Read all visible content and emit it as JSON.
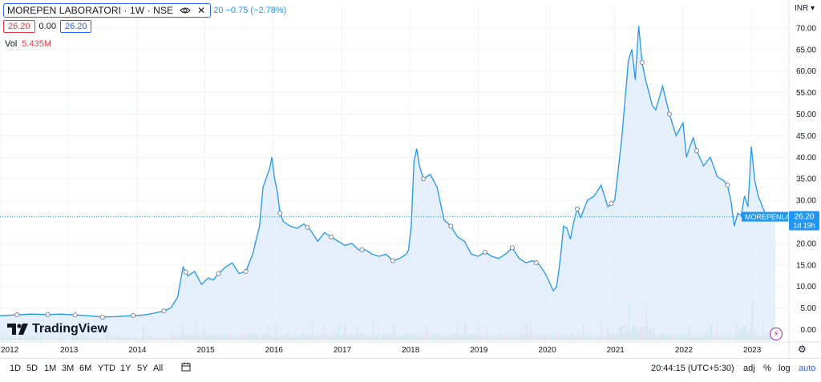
{
  "header": {
    "symbol": "MOREPEN LABORATORI · 1W · NSE",
    "change": "20 −0.75 (−2.78%)",
    "bid": "26.20",
    "spread": "0.00",
    "ask": "26.20",
    "volume_label": "Vol",
    "volume_value": "5.435M",
    "currency": "INR"
  },
  "price_label": {
    "ticker": "MOREPENLAB",
    "price": "26.20",
    "countdown": "1d 19h"
  },
  "branding": {
    "logo_text": "TradingView"
  },
  "toolbar": {
    "ranges": [
      "1D",
      "5D",
      "1M",
      "3M",
      "6M",
      "YTD",
      "1Y",
      "5Y",
      "All"
    ],
    "clock": "20:44:15 (UTC+5:30)",
    "adj": "adj",
    "percent": "%",
    "log": "log",
    "auto": "auto"
  },
  "colors": {
    "line": "#2196f3",
    "fill": "#dcebfb",
    "vol_up": "#9fd6cf",
    "vol_down": "#f7b8bc",
    "label_bg": "#2196f3"
  },
  "icons": [
    "eye-icon",
    "close-icon",
    "tradingview-logo-icon",
    "lightning-icon",
    "settings-icon",
    "calendar-icon"
  ],
  "chart_data": {
    "type": "area",
    "title": "MOREPEN LABORATORI · 1W · NSE",
    "xlabel": "",
    "ylabel": "INR",
    "ylim": [
      -2.5,
      75
    ],
    "yticks": [
      0,
      5,
      10,
      15,
      20,
      25,
      30,
      35,
      40,
      45,
      50,
      55,
      60,
      65,
      70
    ],
    "ytick_labels": [
      "0.00",
      "5.00",
      "10.00",
      "15.00",
      "20.00",
      "25.00",
      "30.00",
      "35.00",
      "40.00",
      "45.00",
      "50.00",
      "55.00",
      "60.00",
      "65.00",
      "70.00"
    ],
    "xlim": [
      2012.0,
      2023.55
    ],
    "xticks": [
      2012,
      2013,
      2014,
      2015,
      2016,
      2017,
      2018,
      2019,
      2020,
      2021,
      2022,
      2023
    ],
    "xtick_labels": [
      "2012",
      "2013",
      "2014",
      "2015",
      "2016",
      "2017",
      "2018",
      "2019",
      "2020",
      "2021",
      "2022",
      "2023"
    ],
    "last_price": 26.2,
    "series": [
      {
        "x": [
          2012.0,
          2012.2,
          2012.45,
          2012.7,
          2012.9,
          2013.1,
          2013.3,
          2013.5,
          2013.7,
          2013.9,
          2014.1,
          2014.25,
          2014.4,
          2014.5,
          2014.6,
          2014.68,
          2014.75,
          2014.85,
          2014.95,
          2015.05,
          2015.12,
          2015.2,
          2015.3,
          2015.4,
          2015.5,
          2015.6,
          2015.7,
          2015.8,
          2015.85,
          2015.95,
          2015.98,
          2016.02,
          2016.06,
          2016.1,
          2016.15,
          2016.25,
          2016.35,
          2016.45,
          2016.55,
          2016.65,
          2016.75,
          2016.85,
          2016.95,
          2017.05,
          2017.15,
          2017.25,
          2017.35,
          2017.45,
          2017.55,
          2017.65,
          2017.75,
          2017.85,
          2017.95,
          2017.98,
          2018.02,
          2018.06,
          2018.1,
          2018.14,
          2018.2,
          2018.3,
          2018.4,
          2018.5,
          2018.6,
          2018.7,
          2018.8,
          2018.9,
          2019.0,
          2019.1,
          2019.2,
          2019.3,
          2019.4,
          2019.5,
          2019.6,
          2019.7,
          2019.8,
          2019.9,
          2020.0,
          2020.1,
          2020.15,
          2020.2,
          2020.25,
          2020.3,
          2020.35,
          2020.4,
          2020.45,
          2020.5,
          2020.6,
          2020.7,
          2020.8,
          2020.9,
          2021.0,
          2021.1,
          2021.2,
          2021.25,
          2021.3,
          2021.35,
          2021.4,
          2021.45,
          2021.5,
          2021.55,
          2021.6,
          2021.7,
          2021.8,
          2021.9,
          2022.0,
          2022.05,
          2022.1,
          2022.15,
          2022.2,
          2022.3,
          2022.4,
          2022.5,
          2022.6,
          2022.65,
          2022.7,
          2022.75,
          2022.8,
          2022.85,
          2022.9,
          2022.95,
          2023.0,
          2023.05,
          2023.1,
          2023.2,
          2023.3,
          2023.35
        ],
        "y": [
          3.2,
          3.4,
          3.6,
          3.5,
          3.6,
          3.4,
          3.2,
          2.9,
          3.0,
          3.2,
          3.4,
          3.8,
          4.3,
          5.0,
          7.5,
          14.5,
          12.5,
          13.5,
          10.5,
          12.0,
          11.5,
          13.0,
          14.5,
          15.5,
          13.0,
          13.5,
          17.5,
          24.0,
          33.0,
          37.5,
          40.0,
          35.0,
          32.0,
          27.0,
          25.0,
          24.0,
          23.5,
          24.5,
          23.0,
          20.5,
          22.5,
          21.5,
          20.5,
          19.5,
          20.0,
          18.5,
          18.5,
          17.5,
          17.0,
          17.5,
          16.0,
          16.5,
          17.5,
          18.5,
          24.0,
          39.0,
          42.0,
          38.0,
          35.0,
          36.0,
          33.0,
          25.5,
          24.0,
          21.5,
          20.5,
          17.5,
          17.0,
          18.0,
          17.0,
          16.5,
          17.5,
          19.0,
          16.5,
          15.5,
          16.0,
          15.0,
          12.5,
          9.0,
          10.0,
          16.0,
          24.0,
          23.5,
          21.0,
          25.0,
          28.0,
          26.0,
          30.0,
          31.0,
          33.5,
          28.5,
          30.0,
          44.0,
          62.5,
          65.0,
          58.0,
          70.5,
          62.0,
          58.0,
          55.0,
          52.0,
          51.0,
          56.5,
          50.0,
          45.0,
          48.0,
          40.0,
          42.5,
          44.5,
          41.5,
          38.0,
          40.0,
          35.5,
          34.5,
          33.5,
          30.0,
          24.0,
          27.0,
          26.5,
          31.0,
          28.5,
          42.5,
          34.5,
          31.0,
          27.0,
          26.5,
          26.2
        ]
      }
    ],
    "volume_bars_approx": true
  }
}
